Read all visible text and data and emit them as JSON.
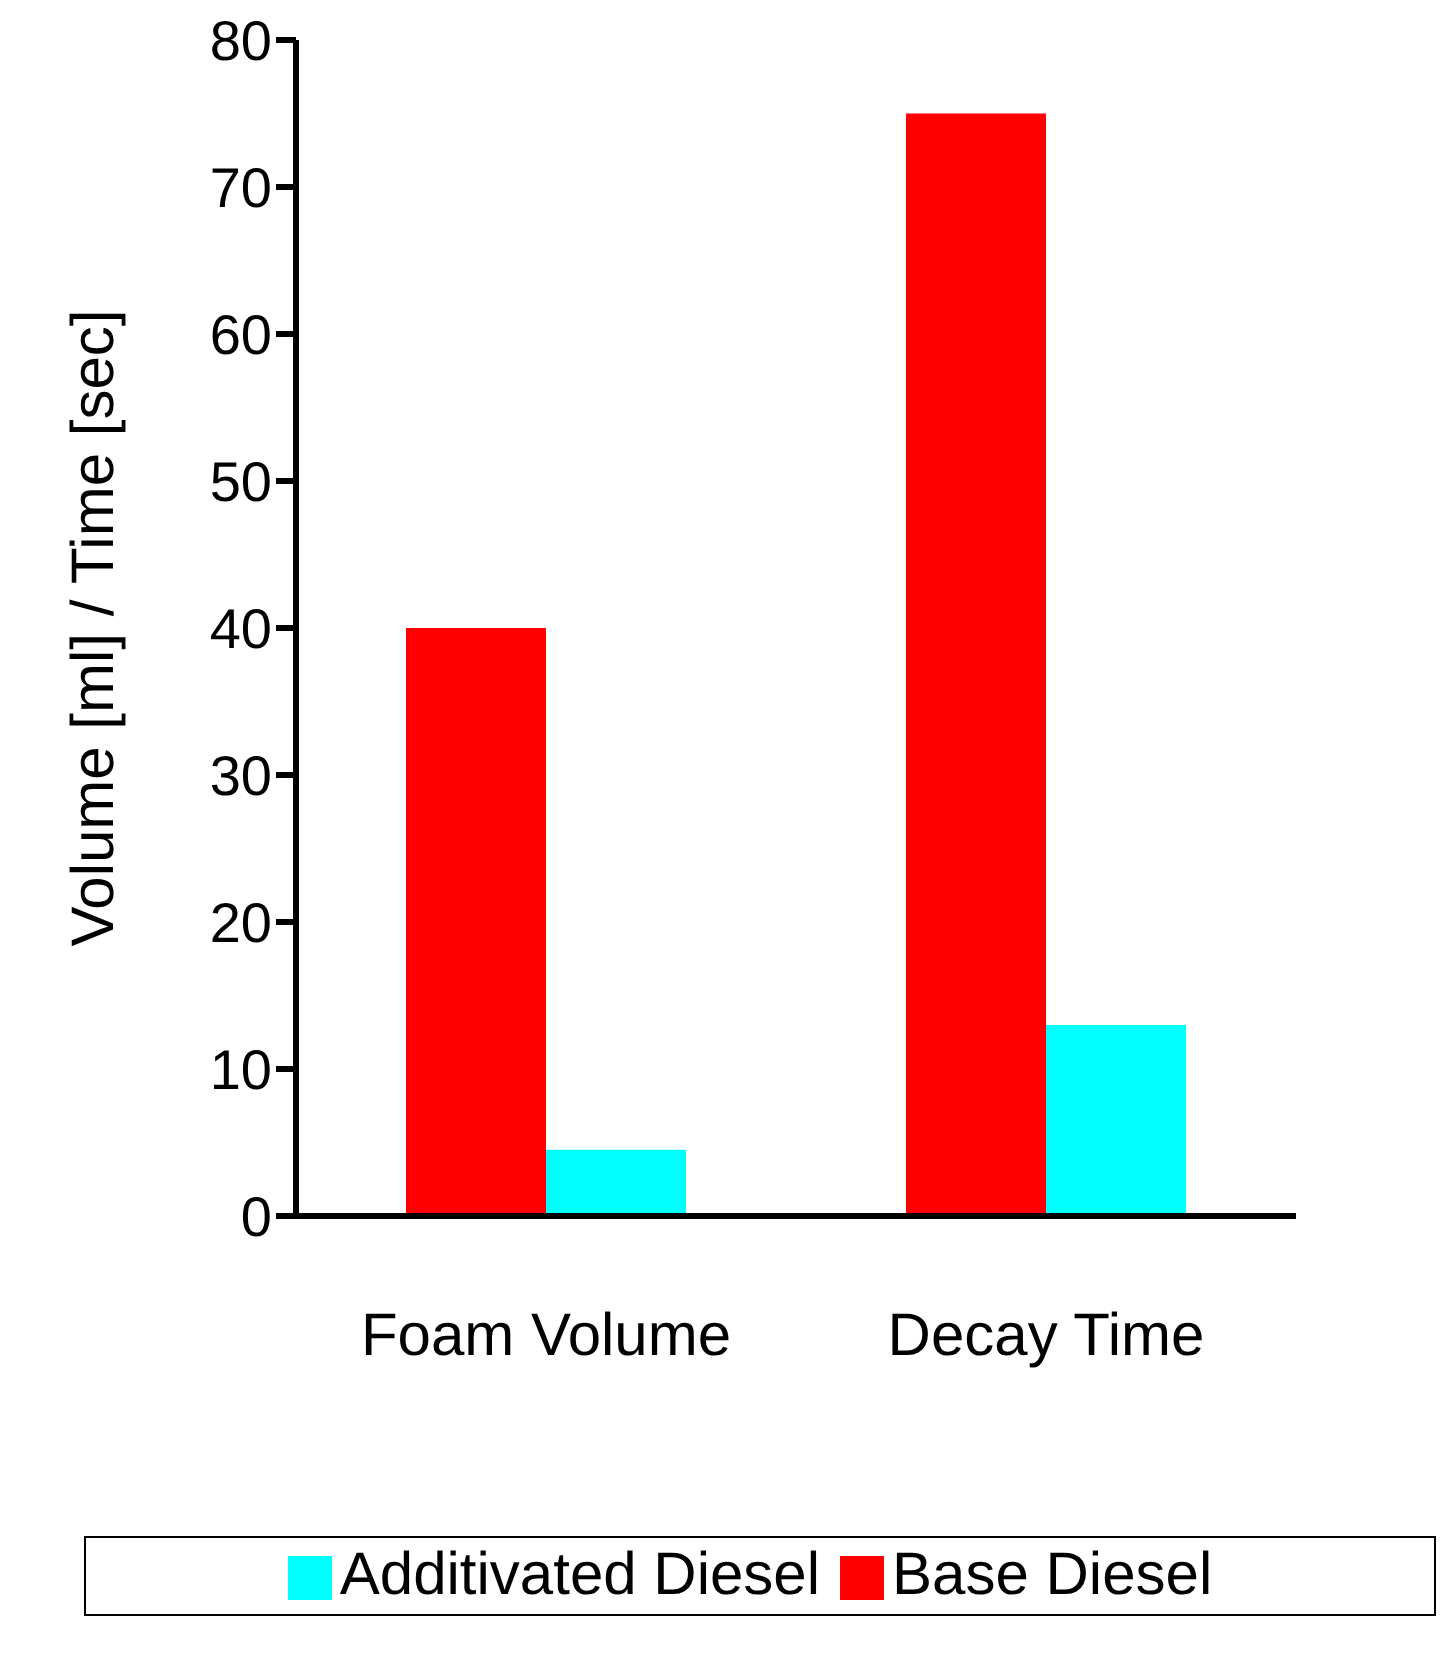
{
  "chart_data": {
    "type": "bar",
    "categories": [
      "Foam Volume",
      "Decay Time"
    ],
    "series": [
      {
        "name": "Base Diesel",
        "color": "#ff0000",
        "values": [
          40,
          75
        ]
      },
      {
        "name": "Additivated Diesel",
        "color": "#00ffff",
        "values": [
          4.5,
          13
        ]
      }
    ],
    "ylabel": "Volume [ml] / Time [sec]",
    "ylim": [
      0,
      80
    ],
    "yticks": [
      0,
      10,
      20,
      30,
      40,
      50,
      60,
      70,
      80
    ],
    "grid": false,
    "legend": "bottom"
  }
}
